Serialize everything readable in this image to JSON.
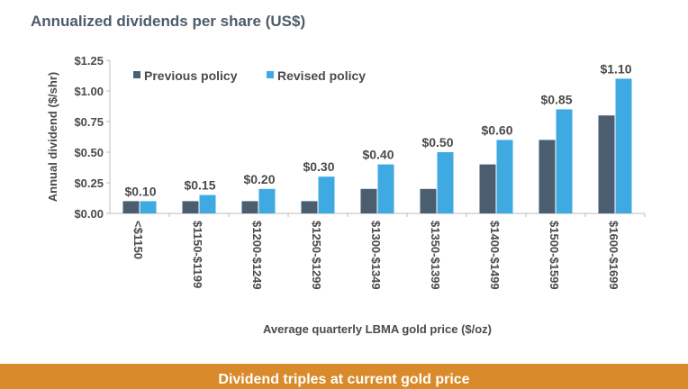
{
  "title": "Annualized dividends per share (US$)",
  "banner_text": "Dividend triples at current gold price",
  "colors": {
    "previous": "#4a5e70",
    "revised": "#3fa9e1",
    "banner": "#d98a2b"
  },
  "chart_data": {
    "type": "bar",
    "title": "Annualized dividends per share (US$)",
    "xlabel": "Average quarterly LBMA gold price ($/oz)",
    "ylabel": "Annual dividend ($/shr)",
    "ylim": [
      0,
      1.25
    ],
    "y_ticks": [
      "$0.00",
      "$0.25",
      "$0.50",
      "$0.75",
      "$1.00",
      "$1.25"
    ],
    "y_tick_values": [
      0,
      0.25,
      0.5,
      0.75,
      1.0,
      1.25
    ],
    "categories": [
      "<$1150",
      "$1150-$1199",
      "$1200-$1249",
      "$1250-$1299",
      "$1300-$1349",
      "$1350-$1399",
      "$1400-$1499",
      "$1500-$1599",
      "$1600-$1699"
    ],
    "series": [
      {
        "name": "Previous policy",
        "values": [
          0.1,
          0.1,
          0.1,
          0.1,
          0.2,
          0.2,
          0.4,
          0.6,
          0.8
        ]
      },
      {
        "name": "Revised policy",
        "values": [
          0.1,
          0.15,
          0.2,
          0.3,
          0.4,
          0.5,
          0.6,
          0.85,
          1.1
        ]
      }
    ],
    "data_labels": [
      "$0.10",
      "$0.15",
      "$0.20",
      "$0.30",
      "$0.40",
      "$0.50",
      "$0.60",
      "$0.85",
      "$1.10"
    ],
    "legend_position": "top-left",
    "grid": false
  }
}
